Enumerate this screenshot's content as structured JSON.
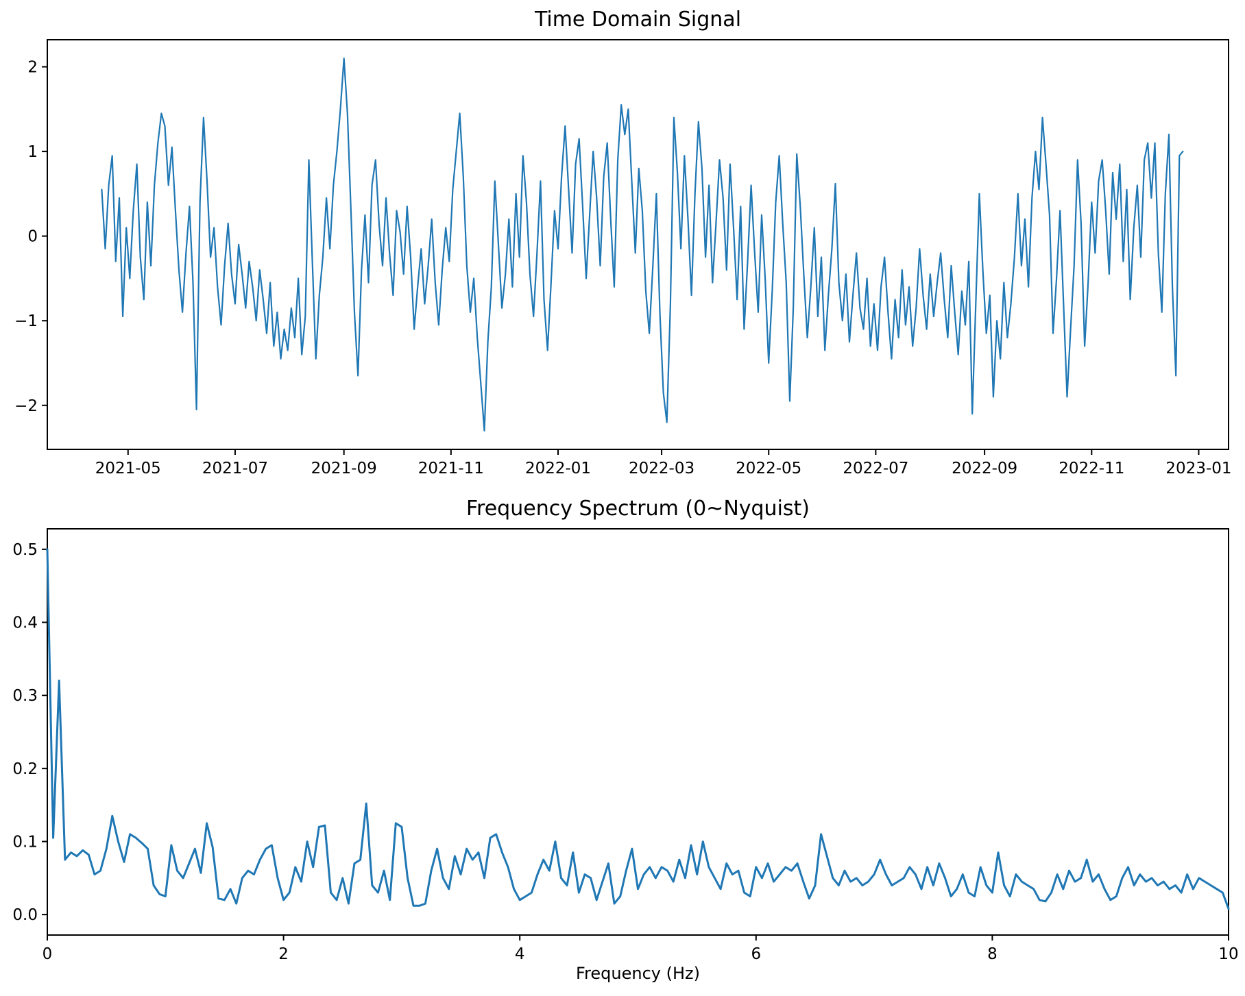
{
  "figure": {
    "background": "#ffffff"
  },
  "chart_data": [
    {
      "type": "line",
      "title": "Time Domain Signal",
      "xlabel": "",
      "ylabel": "",
      "line_color": "#1f77b4",
      "grid": false,
      "legend": false,
      "x_axis": {
        "kind": "date",
        "min": "2021-03-16",
        "max": "2023-01-18",
        "ticks": [
          {
            "label": "2021-05",
            "date": "2021-05-01"
          },
          {
            "label": "2021-07",
            "date": "2021-07-01"
          },
          {
            "label": "2021-09",
            "date": "2021-09-01"
          },
          {
            "label": "2021-11",
            "date": "2021-11-01"
          },
          {
            "label": "2022-01",
            "date": "2022-01-01"
          },
          {
            "label": "2022-03",
            "date": "2022-03-01"
          },
          {
            "label": "2022-05",
            "date": "2022-05-01"
          },
          {
            "label": "2022-07",
            "date": "2022-07-01"
          },
          {
            "label": "2022-09",
            "date": "2022-09-01"
          },
          {
            "label": "2022-11",
            "date": "2022-11-01"
          },
          {
            "label": "2023-01",
            "date": "2023-01-01"
          }
        ]
      },
      "y_axis": {
        "min": -2.52,
        "max": 2.32,
        "ticks": [
          {
            "label": "2",
            "value": 2
          },
          {
            "label": "1",
            "value": 1
          },
          {
            "label": "0",
            "value": 0
          },
          {
            "label": "−1",
            "value": -1
          },
          {
            "label": "−2",
            "value": -2
          }
        ]
      },
      "series": {
        "name": "signal",
        "start_date": "2021-04-16",
        "step_days": 2,
        "values": [
          0.55,
          -0.15,
          0.6,
          0.95,
          -0.3,
          0.45,
          -0.95,
          0.1,
          -0.5,
          0.3,
          0.85,
          -0.25,
          -0.75,
          0.4,
          -0.35,
          0.6,
          1.1,
          1.45,
          1.3,
          0.6,
          1.05,
          0.3,
          -0.4,
          -0.9,
          -0.2,
          0.35,
          -0.55,
          -2.05,
          0.4,
          1.4,
          0.65,
          -0.25,
          0.1,
          -0.6,
          -1.05,
          -0.35,
          0.15,
          -0.45,
          -0.8,
          -0.1,
          -0.45,
          -0.85,
          -0.3,
          -0.6,
          -1.0,
          -0.4,
          -0.75,
          -1.15,
          -0.55,
          -1.3,
          -0.9,
          -1.45,
          -1.1,
          -1.35,
          -0.85,
          -1.2,
          -0.5,
          -1.4,
          -0.95,
          0.9,
          -0.3,
          -1.45,
          -0.7,
          -0.25,
          0.45,
          -0.15,
          0.6,
          1.0,
          1.5,
          2.1,
          1.45,
          0.3,
          -0.9,
          -1.65,
          -0.4,
          0.25,
          -0.55,
          0.6,
          0.9,
          0.15,
          -0.35,
          0.45,
          -0.2,
          -0.7,
          0.3,
          0.05,
          -0.45,
          0.35,
          -0.25,
          -1.1,
          -0.6,
          -0.15,
          -0.8,
          -0.35,
          0.2,
          -0.55,
          -1.05,
          -0.4,
          0.1,
          -0.3,
          0.55,
          1.0,
          1.45,
          0.7,
          -0.35,
          -0.9,
          -0.5,
          -1.2,
          -1.75,
          -2.3,
          -1.25,
          -0.6,
          0.65,
          -0.1,
          -0.85,
          -0.45,
          0.2,
          -0.6,
          0.5,
          -0.25,
          0.95,
          0.4,
          -0.45,
          -0.95,
          -0.2,
          0.65,
          -0.75,
          -1.35,
          -0.55,
          0.3,
          -0.15,
          0.7,
          1.3,
          0.55,
          -0.2,
          0.85,
          1.15,
          0.35,
          -0.5,
          0.25,
          1.0,
          0.45,
          -0.35,
          0.7,
          1.1,
          0.2,
          -0.6,
          0.9,
          1.55,
          1.2,
          1.5,
          0.65,
          -0.2,
          0.8,
          0.3,
          -0.65,
          -1.15,
          -0.35,
          0.5,
          -0.9,
          -1.85,
          -2.2,
          -0.8,
          1.4,
          0.75,
          -0.15,
          0.95,
          0.2,
          -0.7,
          0.5,
          1.35,
          0.8,
          -0.25,
          0.6,
          -0.55,
          0.15,
          0.9,
          0.45,
          -0.4,
          0.85,
          0.1,
          -0.75,
          0.35,
          -1.1,
          -0.3,
          0.6,
          -0.2,
          -0.9,
          0.25,
          -0.5,
          -1.5,
          -0.65,
          0.4,
          0.95,
          0.15,
          -0.55,
          -1.95,
          -0.85,
          0.97,
          0.35,
          -0.45,
          -1.2,
          -0.6,
          0.1,
          -0.95,
          -0.25,
          -1.35,
          -0.7,
          -0.15,
          0.62,
          -0.55,
          -1.0,
          -0.45,
          -1.25,
          -0.7,
          -0.2,
          -0.85,
          -1.1,
          -0.5,
          -1.3,
          -0.8,
          -1.35,
          -0.6,
          -0.25,
          -0.9,
          -1.45,
          -0.75,
          -1.2,
          -0.4,
          -1.05,
          -0.6,
          -1.3,
          -0.85,
          -0.15,
          -0.7,
          -1.1,
          -0.45,
          -0.95,
          -0.55,
          -0.2,
          -0.75,
          -1.2,
          -0.35,
          -0.9,
          -1.4,
          -0.65,
          -1.05,
          -0.3,
          -2.1,
          -0.8,
          0.5,
          -0.4,
          -1.15,
          -0.7,
          -1.9,
          -1.0,
          -1.45,
          -0.55,
          -1.2,
          -0.8,
          -0.25,
          0.5,
          -0.35,
          0.2,
          -0.6,
          0.45,
          1.0,
          0.55,
          1.4,
          0.85,
          0.25,
          -1.15,
          -0.5,
          0.3,
          -0.8,
          -1.9,
          -1.1,
          -0.35,
          0.9,
          0.15,
          -1.3,
          -0.55,
          0.4,
          -0.2,
          0.65,
          0.9,
          0.3,
          -0.45,
          0.75,
          0.2,
          0.85,
          -0.3,
          0.55,
          -0.75,
          0.1,
          0.6,
          -0.25,
          0.9,
          1.1,
          0.45,
          1.1,
          -0.2,
          -0.9,
          0.5,
          1.2,
          -0.6,
          -1.65,
          0.95,
          1.0
        ]
      }
    },
    {
      "type": "line",
      "title": "Frequency Spectrum (0~Nyquist)",
      "xlabel": "Frequency (Hz)",
      "ylabel": "",
      "line_color": "#1f77b4",
      "grid": false,
      "legend": false,
      "x_axis": {
        "kind": "linear",
        "min": 0,
        "max": 10,
        "ticks": [
          {
            "label": "0",
            "value": 0
          },
          {
            "label": "2",
            "value": 2
          },
          {
            "label": "4",
            "value": 4
          },
          {
            "label": "6",
            "value": 6
          },
          {
            "label": "8",
            "value": 8
          },
          {
            "label": "10",
            "value": 10
          }
        ]
      },
      "y_axis": {
        "min": -0.028,
        "max": 0.528,
        "ticks": [
          {
            "label": "0.5",
            "value": 0.5
          },
          {
            "label": "0.4",
            "value": 0.4
          },
          {
            "label": "0.3",
            "value": 0.3
          },
          {
            "label": "0.2",
            "value": 0.2
          },
          {
            "label": "0.1",
            "value": 0.1
          },
          {
            "label": "0.0",
            "value": 0.0
          }
        ]
      },
      "series": {
        "name": "amplitude",
        "f_start": 0,
        "df": 0.05,
        "values": [
          0.5,
          0.105,
          0.32,
          0.075,
          0.085,
          0.08,
          0.088,
          0.082,
          0.055,
          0.06,
          0.09,
          0.135,
          0.1,
          0.072,
          0.11,
          0.105,
          0.098,
          0.09,
          0.04,
          0.028,
          0.025,
          0.095,
          0.06,
          0.05,
          0.07,
          0.09,
          0.057,
          0.125,
          0.092,
          0.022,
          0.02,
          0.035,
          0.015,
          0.05,
          0.06,
          0.055,
          0.075,
          0.09,
          0.095,
          0.05,
          0.02,
          0.03,
          0.065,
          0.045,
          0.1,
          0.065,
          0.12,
          0.122,
          0.03,
          0.02,
          0.05,
          0.015,
          0.07,
          0.075,
          0.152,
          0.04,
          0.03,
          0.06,
          0.02,
          0.125,
          0.12,
          0.05,
          0.012,
          0.012,
          0.015,
          0.06,
          0.09,
          0.05,
          0.035,
          0.08,
          0.055,
          0.09,
          0.075,
          0.085,
          0.05,
          0.105,
          0.11,
          0.085,
          0.065,
          0.035,
          0.02,
          0.025,
          0.03,
          0.055,
          0.075,
          0.06,
          0.1,
          0.05,
          0.04,
          0.085,
          0.03,
          0.055,
          0.05,
          0.02,
          0.045,
          0.07,
          0.015,
          0.025,
          0.06,
          0.09,
          0.035,
          0.055,
          0.065,
          0.05,
          0.065,
          0.06,
          0.045,
          0.075,
          0.05,
          0.095,
          0.055,
          0.1,
          0.065,
          0.05,
          0.035,
          0.07,
          0.055,
          0.06,
          0.03,
          0.025,
          0.065,
          0.05,
          0.07,
          0.045,
          0.055,
          0.065,
          0.06,
          0.07,
          0.045,
          0.022,
          0.04,
          0.11,
          0.08,
          0.05,
          0.04,
          0.06,
          0.045,
          0.05,
          0.04,
          0.045,
          0.055,
          0.075,
          0.055,
          0.04,
          0.045,
          0.05,
          0.065,
          0.055,
          0.035,
          0.065,
          0.04,
          0.07,
          0.05,
          0.025,
          0.035,
          0.055,
          0.03,
          0.025,
          0.065,
          0.04,
          0.03,
          0.085,
          0.04,
          0.025,
          0.055,
          0.045,
          0.04,
          0.035,
          0.02,
          0.018,
          0.03,
          0.055,
          0.035,
          0.06,
          0.045,
          0.05,
          0.075,
          0.045,
          0.055,
          0.035,
          0.02,
          0.025,
          0.05,
          0.065,
          0.04,
          0.055,
          0.045,
          0.05,
          0.04,
          0.045,
          0.035,
          0.04,
          0.03,
          0.055,
          0.035,
          0.05,
          0.045,
          0.04,
          0.035,
          0.03,
          0.008
        ]
      }
    }
  ]
}
